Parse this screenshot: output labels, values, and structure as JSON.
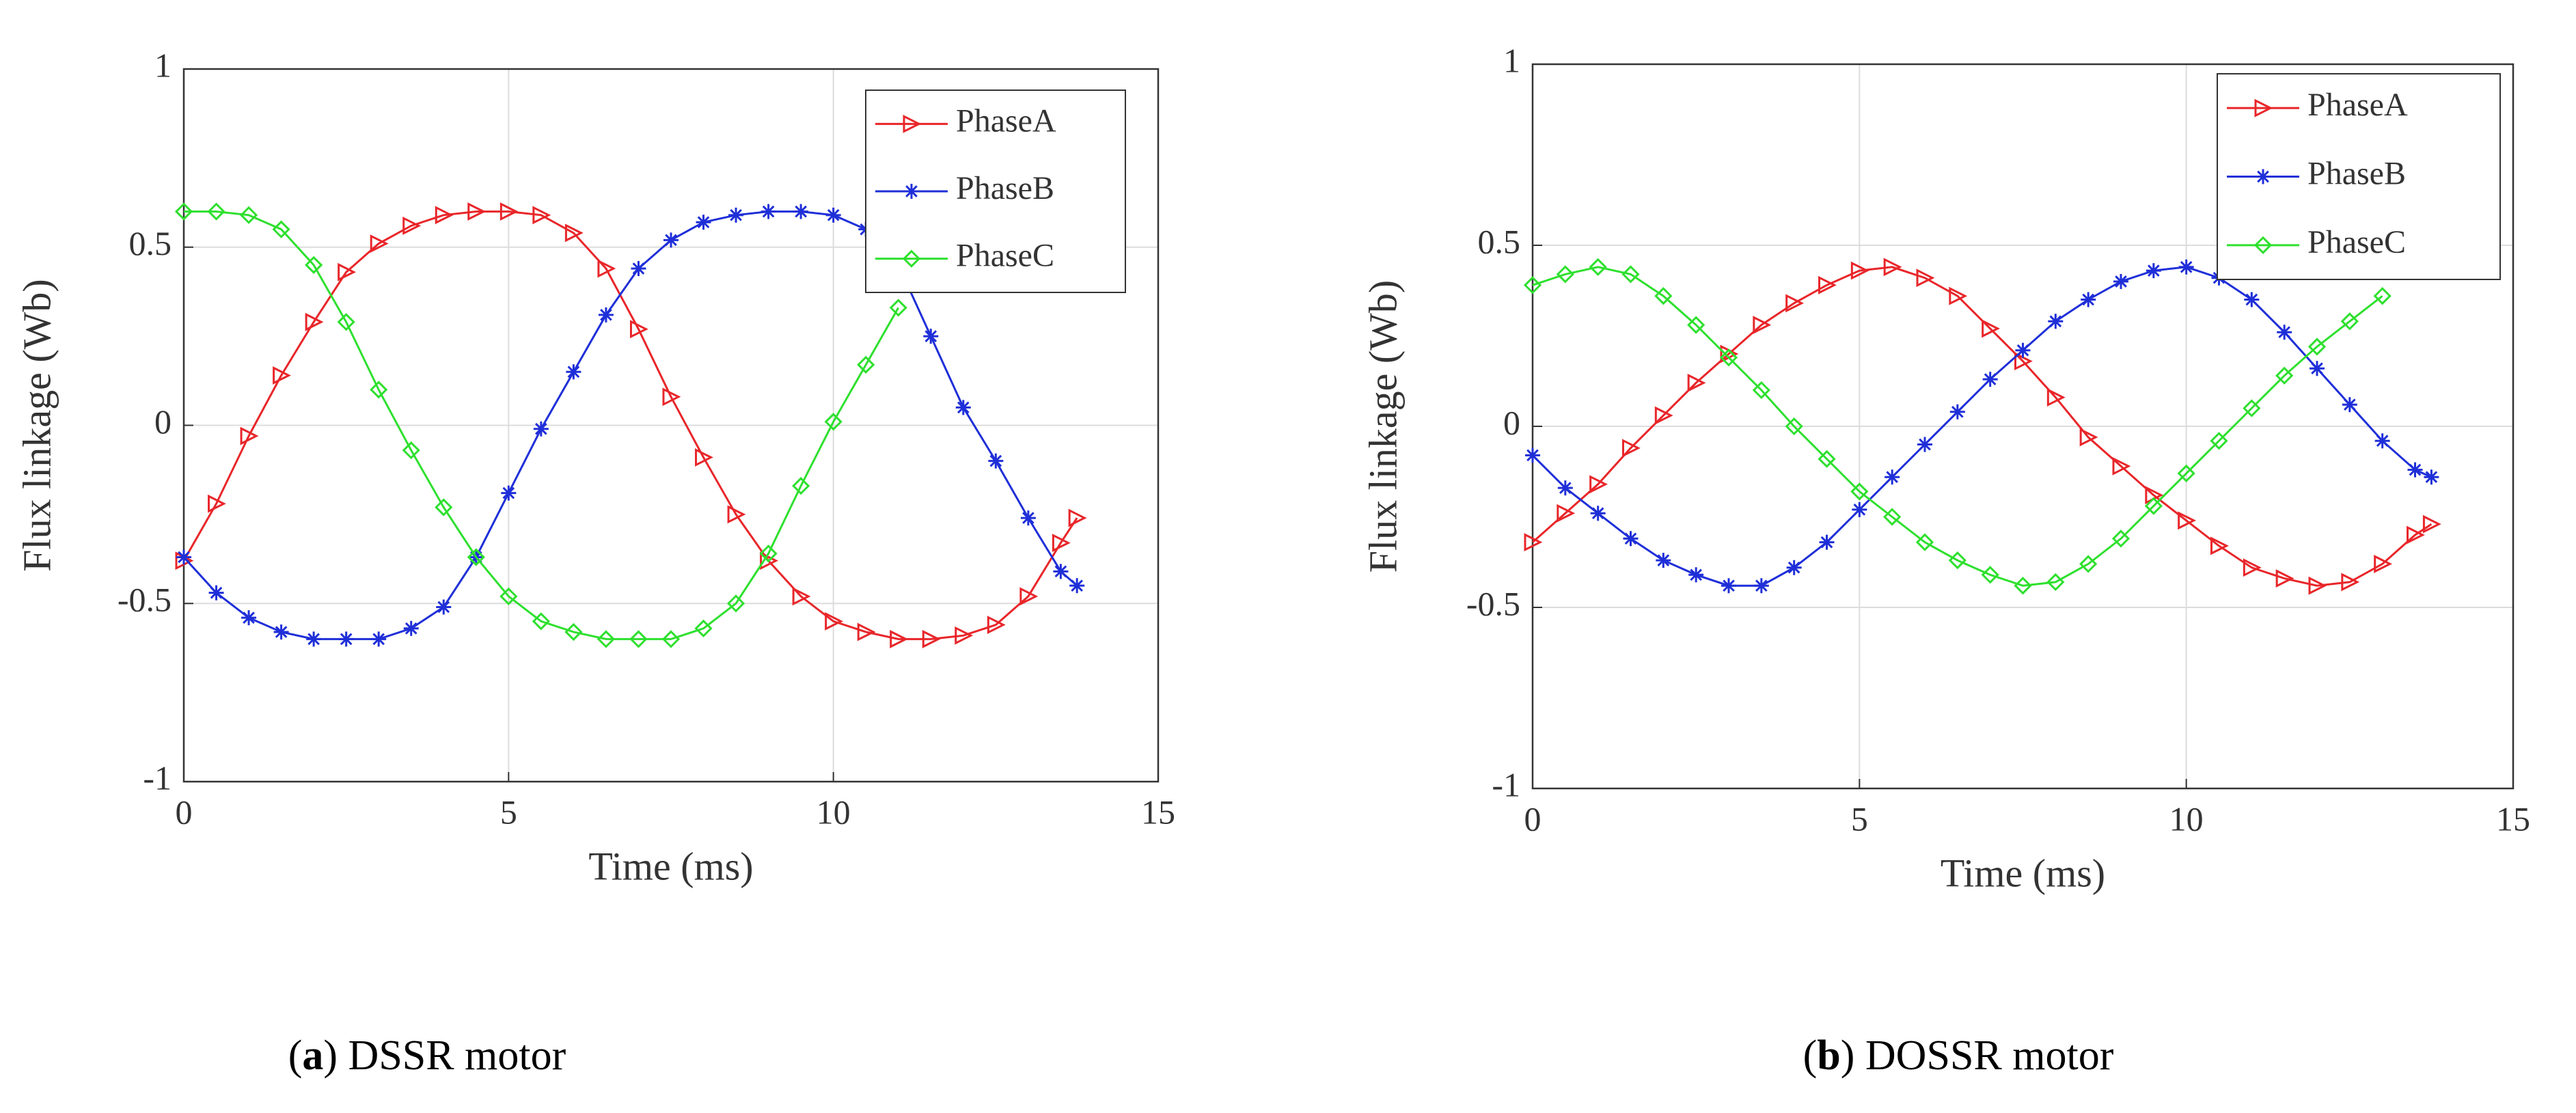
{
  "chart_data": [
    {
      "type": "line",
      "xlabel": "Time (ms)",
      "ylabel": "Flux linkage (Wb)",
      "caption": [
        "(",
        "a",
        ") DSSR motor"
      ],
      "xlim": [
        0,
        15
      ],
      "xticks": [
        0,
        5,
        10,
        15
      ],
      "ylim": [
        -1,
        1
      ],
      "yticks": [
        -1,
        -0.5,
        0,
        0.5,
        1
      ],
      "grid": true,
      "legend": "upper right",
      "x": [
        0,
        0.5,
        1,
        1.5,
        2,
        2.5,
        3,
        3.5,
        4,
        4.5,
        5,
        5.5,
        6,
        6.5,
        7,
        7.5,
        8,
        8.5,
        9,
        9.5,
        10,
        10.5,
        11,
        11.5,
        12,
        12.5,
        13,
        13.5,
        13.75
      ],
      "series": [
        {
          "name": "PhaseA",
          "color": "#e8262a",
          "marker": "triangle-right",
          "values": [
            -0.38,
            -0.22,
            -0.03,
            0.14,
            0.29,
            0.43,
            0.51,
            0.56,
            0.59,
            0.6,
            0.6,
            0.59,
            0.54,
            0.44,
            0.27,
            0.08,
            -0.09,
            -0.25,
            -0.38,
            -0.48,
            -0.55,
            -0.58,
            -0.6,
            -0.6,
            -0.59,
            -0.56,
            -0.48,
            -0.33,
            -0.26
          ]
        },
        {
          "name": "PhaseB",
          "color": "#1f2fd8",
          "marker": "asterisk",
          "values": [
            -0.37,
            -0.47,
            -0.54,
            -0.58,
            -0.6,
            -0.6,
            -0.6,
            -0.57,
            -0.51,
            -0.37,
            -0.19,
            -0.01,
            0.15,
            0.31,
            0.44,
            0.52,
            0.57,
            0.59,
            0.6,
            0.6,
            0.59,
            0.55,
            0.45,
            0.25,
            0.05,
            -0.1,
            -0.26,
            -0.41,
            -0.45
          ]
        },
        {
          "name": "PhaseC",
          "color": "#2ee02e",
          "marker": "diamond",
          "values": [
            0.6,
            0.6,
            0.59,
            0.55,
            0.45,
            0.29,
            0.1,
            -0.07,
            -0.23,
            -0.37,
            -0.48,
            -0.55,
            -0.58,
            -0.6,
            -0.6,
            -0.6,
            -0.57,
            -0.5,
            -0.36,
            -0.17,
            0.01,
            0.17,
            0.33,
            null,
            null,
            null,
            null,
            null,
            null
          ]
        }
      ]
    },
    {
      "type": "line",
      "xlabel": "Time (ms)",
      "ylabel": "Flux linkage (Wb)",
      "caption": [
        "(",
        "b",
        ") DOSSR motor"
      ],
      "xlim": [
        0,
        15
      ],
      "xticks": [
        0,
        5,
        10,
        15
      ],
      "ylim": [
        -1,
        1
      ],
      "yticks": [
        -1,
        -0.5,
        0,
        0.5,
        1
      ],
      "grid": true,
      "legend": "upper right",
      "x": [
        0,
        0.5,
        1,
        1.5,
        2,
        2.5,
        3,
        3.5,
        4,
        4.5,
        5,
        5.5,
        6,
        6.5,
        7,
        7.5,
        8,
        8.5,
        9,
        9.5,
        10,
        10.5,
        11,
        11.5,
        12,
        12.5,
        13,
        13.5,
        13.75
      ],
      "series": [
        {
          "name": "PhaseA",
          "color": "#e8262a",
          "marker": "triangle-right",
          "values": [
            -0.32,
            -0.24,
            -0.16,
            -0.06,
            0.03,
            0.12,
            0.2,
            0.28,
            0.34,
            0.39,
            0.43,
            0.44,
            0.41,
            0.36,
            0.27,
            0.18,
            0.08,
            -0.03,
            -0.11,
            -0.19,
            -0.26,
            -0.33,
            -0.39,
            -0.42,
            -0.44,
            -0.43,
            -0.38,
            -0.3,
            -0.27
          ]
        },
        {
          "name": "PhaseB",
          "color": "#1f2fd8",
          "marker": "asterisk",
          "values": [
            -0.08,
            -0.17,
            -0.24,
            -0.31,
            -0.37,
            -0.41,
            -0.44,
            -0.44,
            -0.39,
            -0.32,
            -0.23,
            -0.14,
            -0.05,
            0.04,
            0.13,
            0.21,
            0.29,
            0.35,
            0.4,
            0.43,
            0.44,
            0.41,
            0.35,
            0.26,
            0.16,
            0.06,
            -0.04,
            -0.12,
            -0.14
          ]
        },
        {
          "name": "PhaseC",
          "color": "#2ee02e",
          "marker": "diamond",
          "values": [
            0.39,
            0.42,
            0.44,
            0.42,
            0.36,
            0.28,
            0.19,
            0.1,
            0.0,
            -0.09,
            -0.18,
            -0.25,
            -0.32,
            -0.37,
            -0.41,
            -0.44,
            -0.43,
            -0.38,
            -0.31,
            -0.22,
            -0.13,
            -0.04,
            0.05,
            0.14,
            0.22,
            0.29,
            0.36,
            null,
            null
          ]
        }
      ]
    }
  ]
}
